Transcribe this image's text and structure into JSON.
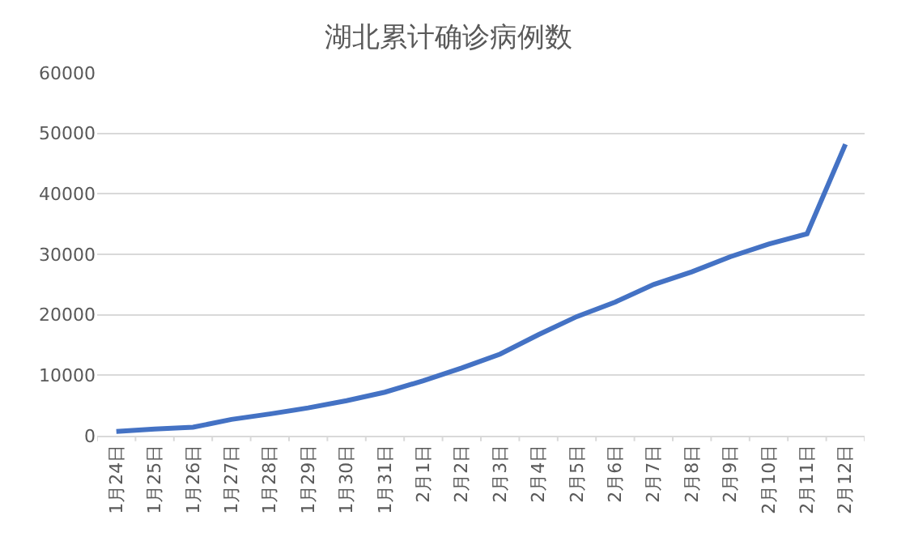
{
  "chart_data": {
    "type": "line",
    "title": "湖北累计确诊病例数",
    "categories": [
      "1月24日",
      "1月25日",
      "1月26日",
      "1月27日",
      "1月28日",
      "1月29日",
      "1月30日",
      "1月31日",
      "2月1日",
      "2月2日",
      "2月3日",
      "2月4日",
      "2月5日",
      "2月6日",
      "2月7日",
      "2月8日",
      "2月9日",
      "2月10日",
      "2月11日",
      "2月12日"
    ],
    "series": [
      {
        "color": "#4472c4",
        "values": [
          700,
          1100,
          1400,
          2700,
          3600,
          4600,
          5800,
          7200,
          9100,
          11200,
          13500,
          16700,
          19700,
          22100,
          25000,
          27100,
          29600,
          31700,
          33400,
          48200
        ]
      }
    ],
    "ylim": [
      0,
      60000
    ],
    "yticks": [
      0,
      10000,
      20000,
      30000,
      40000,
      50000,
      60000
    ],
    "grid": "y",
    "marker": "none",
    "line_style": "solid"
  }
}
